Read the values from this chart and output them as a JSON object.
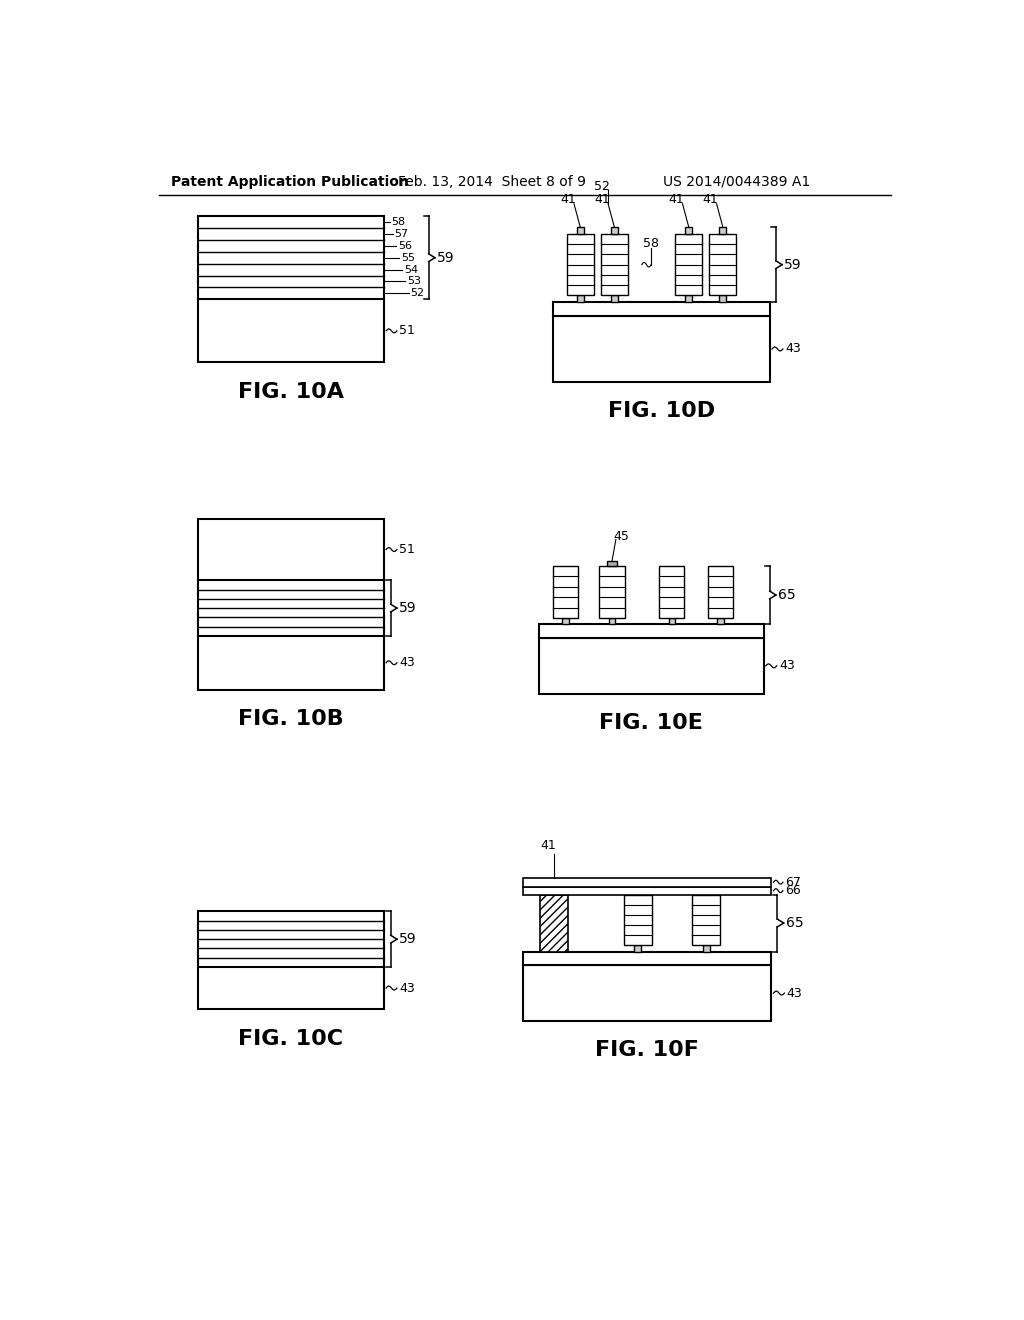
{
  "header_left": "Patent Application Publication",
  "header_center": "Feb. 13, 2014  Sheet 8 of 9",
  "header_right": "US 2014/0044389 A1",
  "background_color": "#ffffff",
  "line_color": "#000000"
}
